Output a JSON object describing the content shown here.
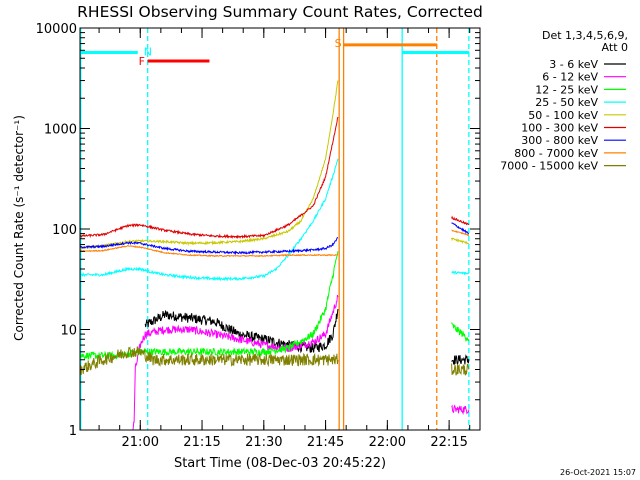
{
  "chart_data": {
    "type": "line",
    "title": "RHESSI Observing Summary Count Rates, Corrected",
    "xlabel": "Start Time (08-Dec-03 20:45:22)",
    "ylabel": "Corrected Count Rate (s⁻¹ detector⁻¹)",
    "y_scale": "log",
    "ylim": [
      1,
      10000
    ],
    "xlim": [
      20.7561,
      22.375
    ],
    "x_ticks": [
      {
        "t": 21.0,
        "label": "21:00"
      },
      {
        "t": 21.25,
        "label": "21:15"
      },
      {
        "t": 21.5,
        "label": "21:30"
      },
      {
        "t": 21.75,
        "label": "21:45"
      },
      {
        "t": 22.0,
        "label": "22:00"
      },
      {
        "t": 22.25,
        "label": "22:15"
      }
    ],
    "y_ticks": [
      {
        "v": 1,
        "label": "1"
      },
      {
        "v": 10,
        "label": "10"
      },
      {
        "v": 100,
        "label": "100"
      },
      {
        "v": 1000,
        "label": "1000"
      },
      {
        "v": 10000,
        "label": "10000"
      }
    ],
    "legend": {
      "header1": "Det 1,3,4,5,6,9,",
      "header2": "Att 0",
      "position": "right"
    },
    "series": [
      {
        "name": "3 - 6 keV",
        "color": "#000000",
        "segments": [
          [
            [
              21.02,
              11
            ],
            [
              21.1,
              14
            ],
            [
              21.2,
              13
            ],
            [
              21.3,
              12
            ],
            [
              21.4,
              9
            ],
            [
              21.5,
              8
            ],
            [
              21.6,
              7
            ],
            [
              21.7,
              6.5
            ],
            [
              21.75,
              7
            ],
            [
              21.78,
              9
            ],
            [
              21.8,
              16
            ]
          ],
          [
            [
              22.26,
              5
            ]
          ]
        ]
      },
      {
        "name": "6 - 12 keV",
        "color": "#ff00ff",
        "segments": [
          [
            [
              20.97,
              1
            ],
            [
              20.975,
              1.2
            ],
            [
              20.98,
              4
            ],
            [
              21.0,
              7
            ],
            [
              21.02,
              9
            ],
            [
              21.1,
              10
            ],
            [
              21.2,
              10
            ],
            [
              21.3,
              9
            ],
            [
              21.4,
              8
            ],
            [
              21.5,
              7
            ],
            [
              21.6,
              6.5
            ],
            [
              21.7,
              7.5
            ],
            [
              21.75,
              9
            ],
            [
              21.8,
              21
            ]
          ],
          [
            [
              22.26,
              1.6
            ],
            [
              22.33,
              1.6
            ]
          ]
        ]
      },
      {
        "name": "12 - 25 keV",
        "color": "#00ff00",
        "segments": [
          [
            [
              20.757,
              5.5
            ],
            [
              20.9,
              5.5
            ],
            [
              21.0,
              6
            ],
            [
              21.1,
              6
            ],
            [
              21.2,
              6
            ],
            [
              21.3,
              6
            ],
            [
              21.4,
              6
            ],
            [
              21.5,
              6
            ],
            [
              21.6,
              6.5
            ],
            [
              21.7,
              9
            ],
            [
              21.75,
              16
            ],
            [
              21.78,
              35
            ],
            [
              21.8,
              60
            ]
          ],
          [
            [
              22.26,
              11
            ],
            [
              22.33,
              8
            ]
          ]
        ]
      },
      {
        "name": "25 - 50 keV",
        "color": "#00ffff",
        "segments": [
          [
            [
              20.757,
              35
            ],
            [
              20.85,
              35
            ],
            [
              20.95,
              40
            ],
            [
              21.0,
              40
            ],
            [
              21.05,
              37
            ],
            [
              21.1,
              35
            ],
            [
              21.2,
              33
            ],
            [
              21.3,
              32
            ],
            [
              21.4,
              32
            ],
            [
              21.5,
              34
            ],
            [
              21.55,
              40
            ],
            [
              21.6,
              55
            ],
            [
              21.65,
              80
            ],
            [
              21.7,
              120
            ],
            [
              21.75,
              200
            ],
            [
              21.78,
              340
            ],
            [
              21.8,
              500
            ]
          ],
          [
            [
              22.26,
              37
            ],
            [
              22.33,
              36
            ]
          ]
        ]
      },
      {
        "name": "50 - 100 keV",
        "color": "#c8c800",
        "segments": [
          [
            [
              20.757,
              65
            ],
            [
              20.85,
              68
            ],
            [
              20.95,
              75
            ],
            [
              21.0,
              76
            ],
            [
              21.1,
              75
            ],
            [
              21.2,
              72
            ],
            [
              21.3,
              73
            ],
            [
              21.4,
              75
            ],
            [
              21.5,
              80
            ],
            [
              21.6,
              95
            ],
            [
              21.65,
              120
            ],
            [
              21.7,
              200
            ],
            [
              21.75,
              500
            ],
            [
              21.78,
              1400
            ],
            [
              21.8,
              3000
            ]
          ],
          [
            [
              22.26,
              80
            ],
            [
              22.33,
              72
            ]
          ]
        ]
      },
      {
        "name": "100 - 300 keV",
        "color": "#e00000",
        "segments": [
          [
            [
              20.757,
              85
            ],
            [
              20.85,
              88
            ],
            [
              20.95,
              108
            ],
            [
              21.0,
              110
            ],
            [
              21.1,
              97
            ],
            [
              21.2,
              89
            ],
            [
              21.3,
              85
            ],
            [
              21.4,
              84
            ],
            [
              21.5,
              86
            ],
            [
              21.6,
              110
            ],
            [
              21.7,
              170
            ],
            [
              21.75,
              330
            ],
            [
              21.78,
              750
            ],
            [
              21.8,
              1300
            ]
          ],
          [
            [
              22.26,
              130
            ],
            [
              22.33,
              110
            ]
          ]
        ]
      },
      {
        "name": "300 - 800 keV",
        "color": "#0000ff",
        "segments": [
          [
            [
              20.757,
              66
            ],
            [
              20.85,
              67
            ],
            [
              20.95,
              73
            ],
            [
              21.0,
              72
            ],
            [
              21.1,
              64
            ],
            [
              21.2,
              60
            ],
            [
              21.3,
              59
            ],
            [
              21.4,
              58
            ],
            [
              21.5,
              59
            ],
            [
              21.6,
              60
            ],
            [
              21.7,
              62
            ],
            [
              21.75,
              64
            ],
            [
              21.78,
              70
            ],
            [
              21.8,
              82
            ]
          ],
          [
            [
              22.26,
              115
            ],
            [
              22.33,
              90
            ]
          ]
        ]
      },
      {
        "name": "800 - 7000 keV",
        "color": "#ff8000",
        "segments": [
          [
            [
              20.757,
              60
            ],
            [
              20.85,
              61
            ],
            [
              20.95,
              68
            ],
            [
              21.0,
              66
            ],
            [
              21.1,
              58
            ],
            [
              21.2,
              55
            ],
            [
              21.3,
              54
            ],
            [
              21.4,
              54
            ],
            [
              21.5,
              54
            ],
            [
              21.6,
              55
            ],
            [
              21.7,
              55
            ],
            [
              21.75,
              55
            ],
            [
              21.8,
              55
            ]
          ],
          [
            [
              22.26,
              97
            ],
            [
              22.33,
              87
            ]
          ]
        ]
      },
      {
        "name": "7000 - 15000 keV",
        "color": "#808000",
        "segments": [
          [
            [
              20.757,
              4
            ],
            [
              20.85,
              5
            ],
            [
              20.95,
              6
            ],
            [
              21.0,
              6
            ],
            [
              21.05,
              5
            ],
            [
              21.1,
              5
            ],
            [
              21.2,
              5
            ],
            [
              21.3,
              5
            ],
            [
              21.4,
              5
            ],
            [
              21.5,
              5
            ],
            [
              21.6,
              5
            ],
            [
              21.7,
              5
            ],
            [
              21.8,
              5
            ]
          ],
          [
            [
              22.26,
              4
            ],
            [
              22.33,
              4
            ]
          ]
        ]
      }
    ],
    "flag_bars": [
      {
        "label": "N",
        "color": "#00ffff",
        "y": 5700,
        "segments": [
          [
            20.757,
            20.99
          ],
          [
            22.06,
            22.33
          ]
        ]
      },
      {
        "label": "F",
        "color": "#ff0000",
        "y": 4700,
        "segments": [
          [
            21.03,
            21.28
          ]
        ]
      },
      {
        "label": "S",
        "color": "#ff8000",
        "y": 6800,
        "segments": [
          [
            21.823,
            22.2
          ]
        ]
      }
    ],
    "vertical_lines": [
      {
        "t": 20.759,
        "color": "#00ffff",
        "style": "solid"
      },
      {
        "t": 21.03,
        "color": "#00ffff",
        "style": "dashed"
      },
      {
        "t": 21.805,
        "color": "#ff8000",
        "style": "solid"
      },
      {
        "t": 21.823,
        "color": "#ff8000",
        "style": "solid"
      },
      {
        "t": 22.06,
        "color": "#00ffff",
        "style": "solid"
      },
      {
        "t": 22.2,
        "color": "#ff8000",
        "style": "dashed"
      },
      {
        "t": 22.33,
        "color": "#00ffff",
        "style": "dashed"
      }
    ],
    "footer_date": "26-Oct-2021 15:07"
  }
}
